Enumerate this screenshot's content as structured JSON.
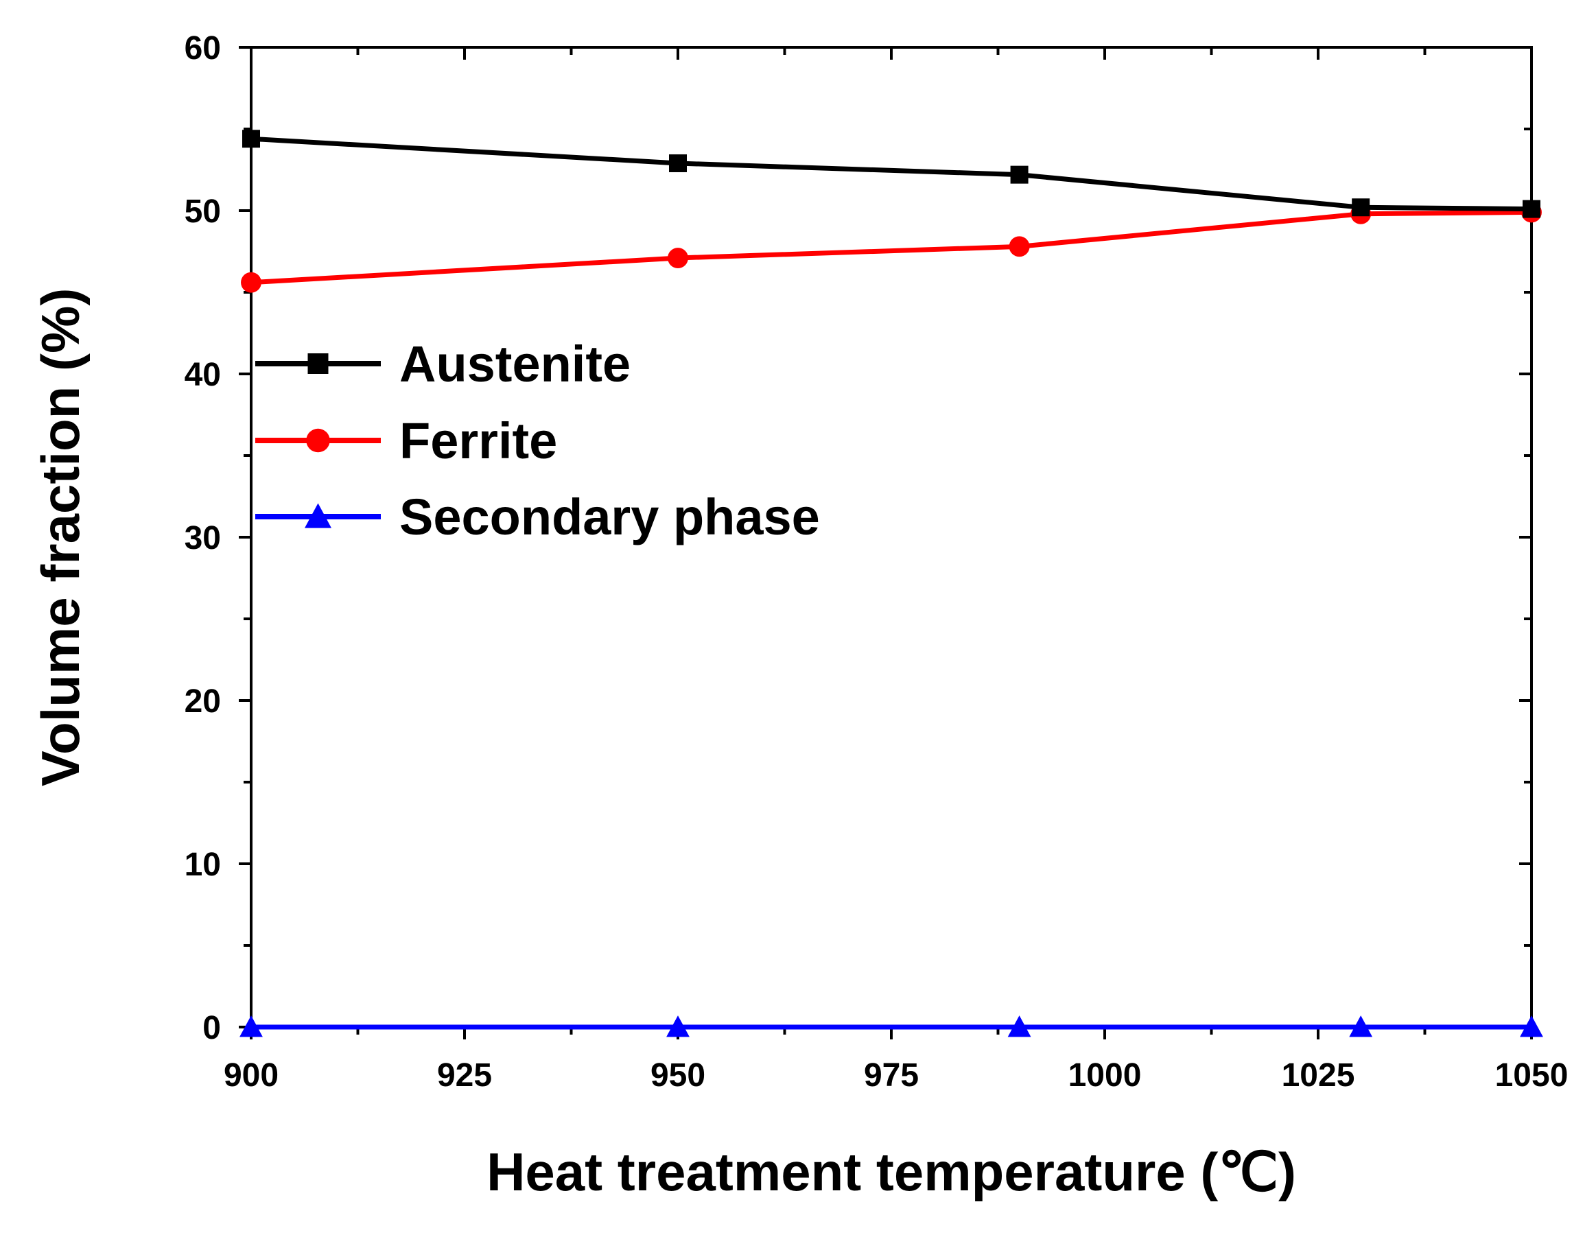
{
  "chart_data": {
    "type": "line",
    "title": "",
    "xlabel": "Heat treatment temperature (℃)",
    "ylabel": "Volume fraction (%)",
    "xlim": [
      900,
      1050
    ],
    "ylim": [
      0,
      60
    ],
    "x_ticks": [
      900,
      925,
      950,
      975,
      1000,
      1025,
      1050
    ],
    "x_tick_labels": [
      "900",
      "925",
      "950",
      "975",
      "1000",
      "1025",
      "1050"
    ],
    "y_ticks": [
      0,
      10,
      20,
      30,
      40,
      50,
      60
    ],
    "y_tick_labels": [
      "0",
      "10",
      "20",
      "30",
      "40",
      "50",
      "60"
    ],
    "grid": false,
    "legend_position": "center-left",
    "x": [
      900,
      950,
      990,
      1030,
      1050
    ],
    "series": [
      {
        "name": "Austenite",
        "color": "#000000",
        "marker": "square",
        "values": [
          54.4,
          52.9,
          52.2,
          50.2,
          50.1
        ]
      },
      {
        "name": "Ferrite",
        "color": "#ff0000",
        "marker": "circle",
        "values": [
          45.6,
          47.1,
          47.8,
          49.8,
          49.9
        ]
      },
      {
        "name": "Secondary phase",
        "color": "#0000ff",
        "marker": "triangle",
        "values": [
          0,
          0,
          0,
          0,
          0
        ]
      }
    ]
  }
}
